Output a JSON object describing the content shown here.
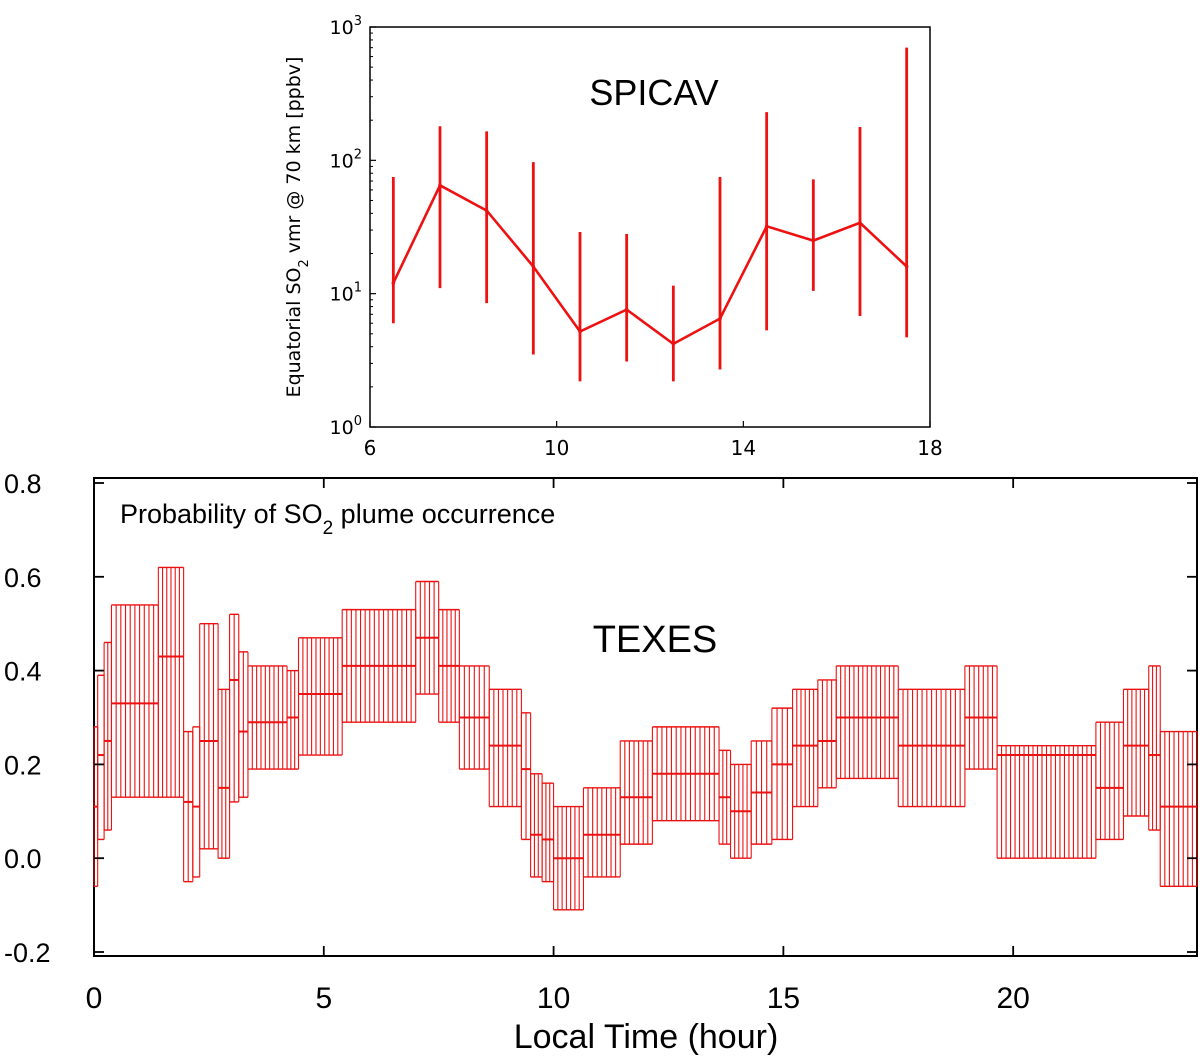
{
  "chart_data": [
    {
      "type": "line",
      "title": "SPICAV",
      "ylabel": "Equatorial SO",
      "ylabel_sub": "2",
      "ylabel_rest": " vmr @ 70 km [ppbv]",
      "yscale": "log",
      "xlim": [
        6,
        18
      ],
      "ylim": [
        1,
        1000
      ],
      "xticks": [
        "6",
        "10",
        "14",
        "18"
      ],
      "xtick_values": [
        6,
        10,
        14,
        18
      ],
      "yticks": [
        {
          "base": "10",
          "exp": "0",
          "value": 1
        },
        {
          "base": "10",
          "exp": "1",
          "value": 10
        },
        {
          "base": "10",
          "exp": "2",
          "value": 100
        },
        {
          "base": "10",
          "exp": "3",
          "value": 1000
        }
      ],
      "color": "#ee1111",
      "series": [
        {
          "name": "SPICAV",
          "x": [
            6.5,
            7.5,
            8.5,
            9.5,
            10.5,
            11.5,
            12.5,
            13.5,
            14.5,
            15.5,
            16.5,
            17.5
          ],
          "y": [
            12,
            65,
            42,
            16,
            5.2,
            7.6,
            4.2,
            6.5,
            32,
            25,
            34,
            16
          ],
          "err_low": [
            6,
            11,
            8.5,
            3.5,
            2.2,
            3.1,
            2.2,
            2.7,
            5.3,
            10.5,
            6.8,
            4.7
          ],
          "err_high": [
            75,
            180,
            165,
            97,
            29,
            28,
            11.5,
            75,
            230,
            72,
            178,
            700
          ]
        }
      ]
    },
    {
      "type": "scatter",
      "title": "TEXES",
      "annotation": "Probability of SO",
      "annotation_sub": "2",
      "annotation_rest": " plume occurrence",
      "xlabel": "Local Time (hour)",
      "xlim": [
        0,
        24
      ],
      "ylim": [
        -0.2,
        0.8
      ],
      "xticks": [
        "0",
        "5",
        "10",
        "15",
        "20"
      ],
      "xtick_values": [
        0,
        5,
        10,
        15,
        20
      ],
      "yticks": [
        "-0.2",
        "0.0",
        "0.2",
        "0.4",
        "0.6",
        "0.8"
      ],
      "ytick_values": [
        -0.2,
        0.0,
        0.2,
        0.4,
        0.6,
        0.8
      ],
      "color": "#ee1111",
      "segments": [
        {
          "x0": 0.0,
          "x1": 0.08,
          "y": 0.11,
          "lo": -0.06,
          "hi": 0.28
        },
        {
          "x0": 0.08,
          "x1": 0.22,
          "y": 0.22,
          "lo": 0.04,
          "hi": 0.39
        },
        {
          "x0": 0.22,
          "x1": 0.38,
          "y": 0.25,
          "lo": 0.06,
          "hi": 0.46
        },
        {
          "x0": 0.38,
          "x1": 1.4,
          "y": 0.33,
          "lo": 0.13,
          "hi": 0.54
        },
        {
          "x0": 1.4,
          "x1": 1.95,
          "y": 0.43,
          "lo": 0.13,
          "hi": 0.62
        },
        {
          "x0": 1.95,
          "x1": 2.15,
          "y": 0.12,
          "lo": -0.05,
          "hi": 0.27
        },
        {
          "x0": 2.15,
          "x1": 2.3,
          "y": 0.11,
          "lo": -0.04,
          "hi": 0.28
        },
        {
          "x0": 2.3,
          "x1": 2.7,
          "y": 0.25,
          "lo": 0.02,
          "hi": 0.5
        },
        {
          "x0": 2.7,
          "x1": 2.95,
          "y": 0.15,
          "lo": 0.0,
          "hi": 0.36
        },
        {
          "x0": 2.95,
          "x1": 3.15,
          "y": 0.38,
          "lo": 0.12,
          "hi": 0.52
        },
        {
          "x0": 3.15,
          "x1": 3.35,
          "y": 0.27,
          "lo": 0.13,
          "hi": 0.44
        },
        {
          "x0": 3.35,
          "x1": 4.2,
          "y": 0.29,
          "lo": 0.19,
          "hi": 0.41
        },
        {
          "x0": 4.2,
          "x1": 4.45,
          "y": 0.3,
          "lo": 0.19,
          "hi": 0.4
        },
        {
          "x0": 4.45,
          "x1": 5.4,
          "y": 0.35,
          "lo": 0.22,
          "hi": 0.47
        },
        {
          "x0": 5.4,
          "x1": 7.0,
          "y": 0.41,
          "lo": 0.29,
          "hi": 0.53
        },
        {
          "x0": 7.0,
          "x1": 7.5,
          "y": 0.47,
          "lo": 0.35,
          "hi": 0.59
        },
        {
          "x0": 7.5,
          "x1": 7.95,
          "y": 0.41,
          "lo": 0.29,
          "hi": 0.53
        },
        {
          "x0": 7.95,
          "x1": 8.6,
          "y": 0.3,
          "lo": 0.19,
          "hi": 0.41
        },
        {
          "x0": 8.6,
          "x1": 9.3,
          "y": 0.24,
          "lo": 0.11,
          "hi": 0.36
        },
        {
          "x0": 9.3,
          "x1": 9.5,
          "y": 0.19,
          "lo": 0.04,
          "hi": 0.31
        },
        {
          "x0": 9.5,
          "x1": 9.75,
          "y": 0.05,
          "lo": -0.04,
          "hi": 0.18
        },
        {
          "x0": 9.75,
          "x1": 10.0,
          "y": 0.04,
          "lo": -0.05,
          "hi": 0.16
        },
        {
          "x0": 10.0,
          "x1": 10.65,
          "y": 0.0,
          "lo": -0.11,
          "hi": 0.11
        },
        {
          "x0": 10.65,
          "x1": 11.45,
          "y": 0.05,
          "lo": -0.04,
          "hi": 0.15
        },
        {
          "x0": 11.45,
          "x1": 12.15,
          "y": 0.13,
          "lo": 0.03,
          "hi": 0.25
        },
        {
          "x0": 12.15,
          "x1": 13.6,
          "y": 0.18,
          "lo": 0.08,
          "hi": 0.28
        },
        {
          "x0": 13.6,
          "x1": 13.85,
          "y": 0.13,
          "lo": 0.03,
          "hi": 0.23
        },
        {
          "x0": 13.85,
          "x1": 14.3,
          "y": 0.1,
          "lo": 0.0,
          "hi": 0.2
        },
        {
          "x0": 14.3,
          "x1": 14.75,
          "y": 0.14,
          "lo": 0.03,
          "hi": 0.25
        },
        {
          "x0": 14.75,
          "x1": 15.2,
          "y": 0.2,
          "lo": 0.04,
          "hi": 0.32
        },
        {
          "x0": 15.2,
          "x1": 15.75,
          "y": 0.24,
          "lo": 0.11,
          "hi": 0.36
        },
        {
          "x0": 15.75,
          "x1": 16.15,
          "y": 0.25,
          "lo": 0.15,
          "hi": 0.38
        },
        {
          "x0": 16.15,
          "x1": 17.5,
          "y": 0.3,
          "lo": 0.17,
          "hi": 0.41
        },
        {
          "x0": 17.5,
          "x1": 18.95,
          "y": 0.24,
          "lo": 0.11,
          "hi": 0.36
        },
        {
          "x0": 18.95,
          "x1": 19.65,
          "y": 0.3,
          "lo": 0.19,
          "hi": 0.41
        },
        {
          "x0": 19.65,
          "x1": 21.8,
          "y": 0.22,
          "lo": 0.0,
          "hi": 0.24
        },
        {
          "x0": 21.8,
          "x1": 22.4,
          "y": 0.15,
          "lo": 0.04,
          "hi": 0.29
        },
        {
          "x0": 22.4,
          "x1": 22.95,
          "y": 0.24,
          "lo": 0.09,
          "hi": 0.36
        },
        {
          "x0": 22.95,
          "x1": 23.2,
          "y": 0.22,
          "lo": 0.06,
          "hi": 0.41
        },
        {
          "x0": 23.2,
          "x1": 24.0,
          "y": 0.11,
          "lo": -0.06,
          "hi": 0.27
        }
      ]
    }
  ]
}
